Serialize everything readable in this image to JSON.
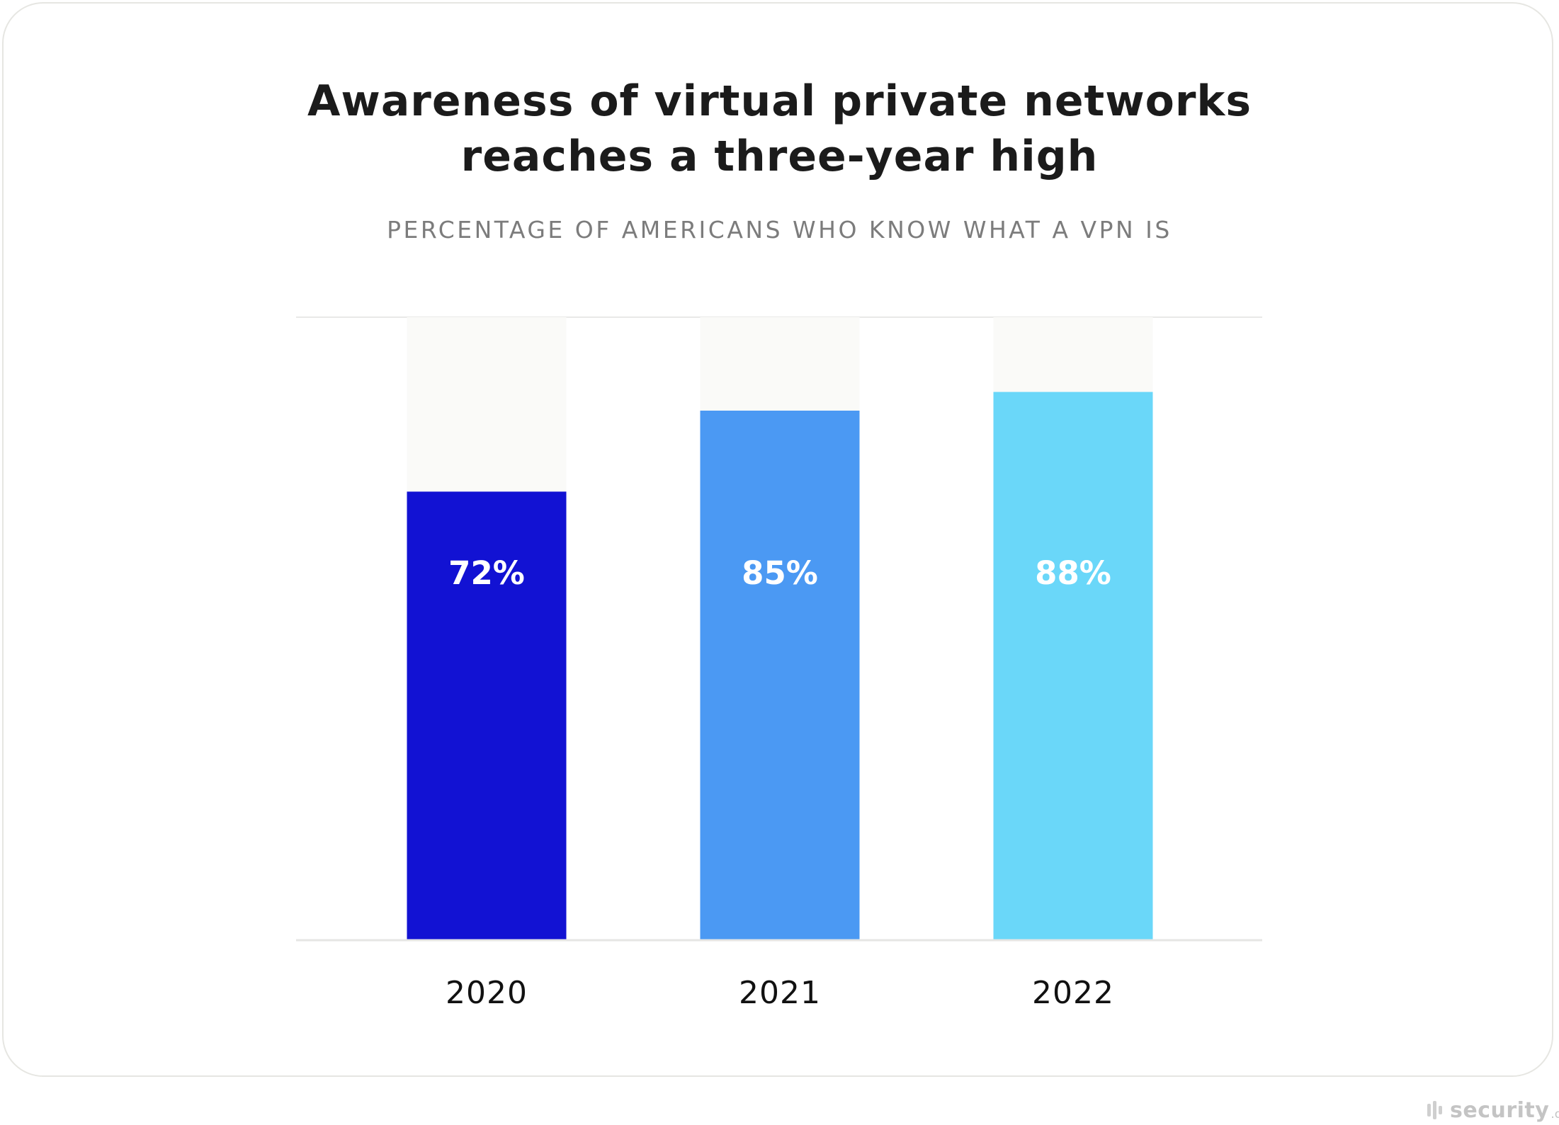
{
  "chart_data": {
    "type": "bar",
    "title_lines": [
      "Awareness of virtual private networks",
      "reaches a three-year high"
    ],
    "subtitle": "PERCENTAGE OF AMERICANS WHO KNOW WHAT A VPN IS",
    "categories": [
      "2020",
      "2021",
      "2022"
    ],
    "values": [
      72,
      85,
      88
    ],
    "value_labels": [
      "72%",
      "85%",
      "88%"
    ],
    "colors": [
      "#1212d3",
      "#4b99f3",
      "#6ad7f9"
    ],
    "track_color": "#fafaf8",
    "ylim": [
      0,
      100
    ],
    "grid": false,
    "legend": "none",
    "xlabel": "",
    "ylabel": ""
  },
  "watermark": {
    "name": "security",
    "tld": ".org"
  }
}
